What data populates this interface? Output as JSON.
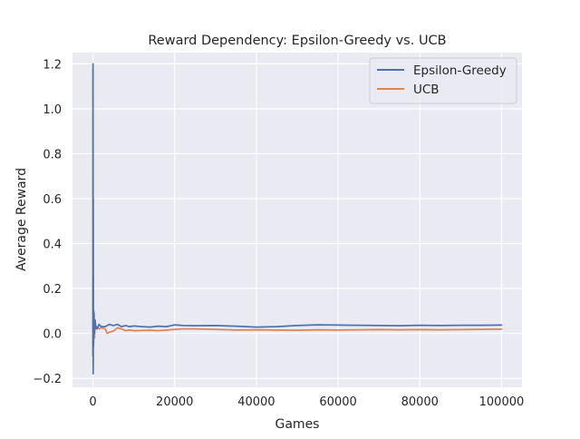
{
  "chart_data": {
    "type": "line",
    "title": "Reward Dependency: Epsilon-Greedy vs. UCB",
    "xlabel": "Games",
    "ylabel": "Average Reward",
    "xlim": [
      -5000,
      105000
    ],
    "ylim": [
      -0.24,
      1.25
    ],
    "xticks": [
      0,
      20000,
      40000,
      60000,
      80000,
      100000
    ],
    "xtick_labels": [
      "0",
      "20000",
      "40000",
      "60000",
      "80000",
      "100000"
    ],
    "yticks": [
      -0.2,
      0.0,
      0.2,
      0.4,
      0.6,
      0.8,
      1.0,
      1.2
    ],
    "ytick_labels": [
      "−0.2",
      "0.0",
      "0.2",
      "0.4",
      "0.6",
      "0.8",
      "1.0",
      "1.2"
    ],
    "grid": true,
    "background": "#eaeaf2",
    "legend_position": "top-right",
    "series": [
      {
        "name": "Epsilon-Greedy",
        "color": "#4c72b0",
        "x": [
          0,
          20,
          40,
          60,
          80,
          100,
          150,
          200,
          300,
          400,
          500,
          700,
          1000,
          1500,
          2000,
          3000,
          4000,
          5000,
          6000,
          7000,
          8000,
          9000,
          10000,
          12000,
          14000,
          16000,
          18000,
          20000,
          22000,
          25000,
          30000,
          35000,
          40000,
          45000,
          50000,
          55000,
          60000,
          65000,
          70000,
          75000,
          80000,
          85000,
          90000,
          95000,
          100000
        ],
        "y": [
          -0.1,
          1.2,
          0.4,
          -0.18,
          0.6,
          0.05,
          -0.06,
          0.1,
          0.04,
          0.0,
          0.06,
          0.03,
          0.02,
          0.04,
          0.03,
          0.03,
          0.04,
          0.035,
          0.04,
          0.03,
          0.035,
          0.03,
          0.033,
          0.03,
          0.028,
          0.032,
          0.03,
          0.038,
          0.035,
          0.034,
          0.035,
          0.032,
          0.028,
          0.03,
          0.035,
          0.038,
          0.037,
          0.036,
          0.035,
          0.034,
          0.036,
          0.035,
          0.036,
          0.036,
          0.037
        ]
      },
      {
        "name": "UCB",
        "color": "#dd8452",
        "x": [
          0,
          20,
          40,
          60,
          80,
          100,
          150,
          200,
          300,
          400,
          500,
          700,
          1000,
          1500,
          2000,
          3000,
          3500,
          4000,
          5000,
          6000,
          7000,
          8000,
          9000,
          10000,
          12000,
          14000,
          16000,
          18000,
          20000,
          22000,
          25000,
          30000,
          35000,
          40000,
          45000,
          50000,
          55000,
          60000,
          65000,
          70000,
          75000,
          80000,
          85000,
          90000,
          95000,
          100000
        ],
        "y": [
          -0.1,
          1.18,
          0.3,
          -0.15,
          0.25,
          0.08,
          -0.05,
          0.05,
          0.09,
          -0.02,
          0.06,
          0.02,
          0.03,
          0.02,
          0.025,
          0.02,
          0.0,
          0.005,
          0.01,
          0.025,
          0.02,
          0.012,
          0.015,
          0.012,
          0.013,
          0.014,
          0.012,
          0.015,
          0.018,
          0.02,
          0.02,
          0.018,
          0.015,
          0.016,
          0.015,
          0.014,
          0.016,
          0.015,
          0.016,
          0.017,
          0.016,
          0.017,
          0.016,
          0.017,
          0.018,
          0.019
        ]
      }
    ]
  }
}
